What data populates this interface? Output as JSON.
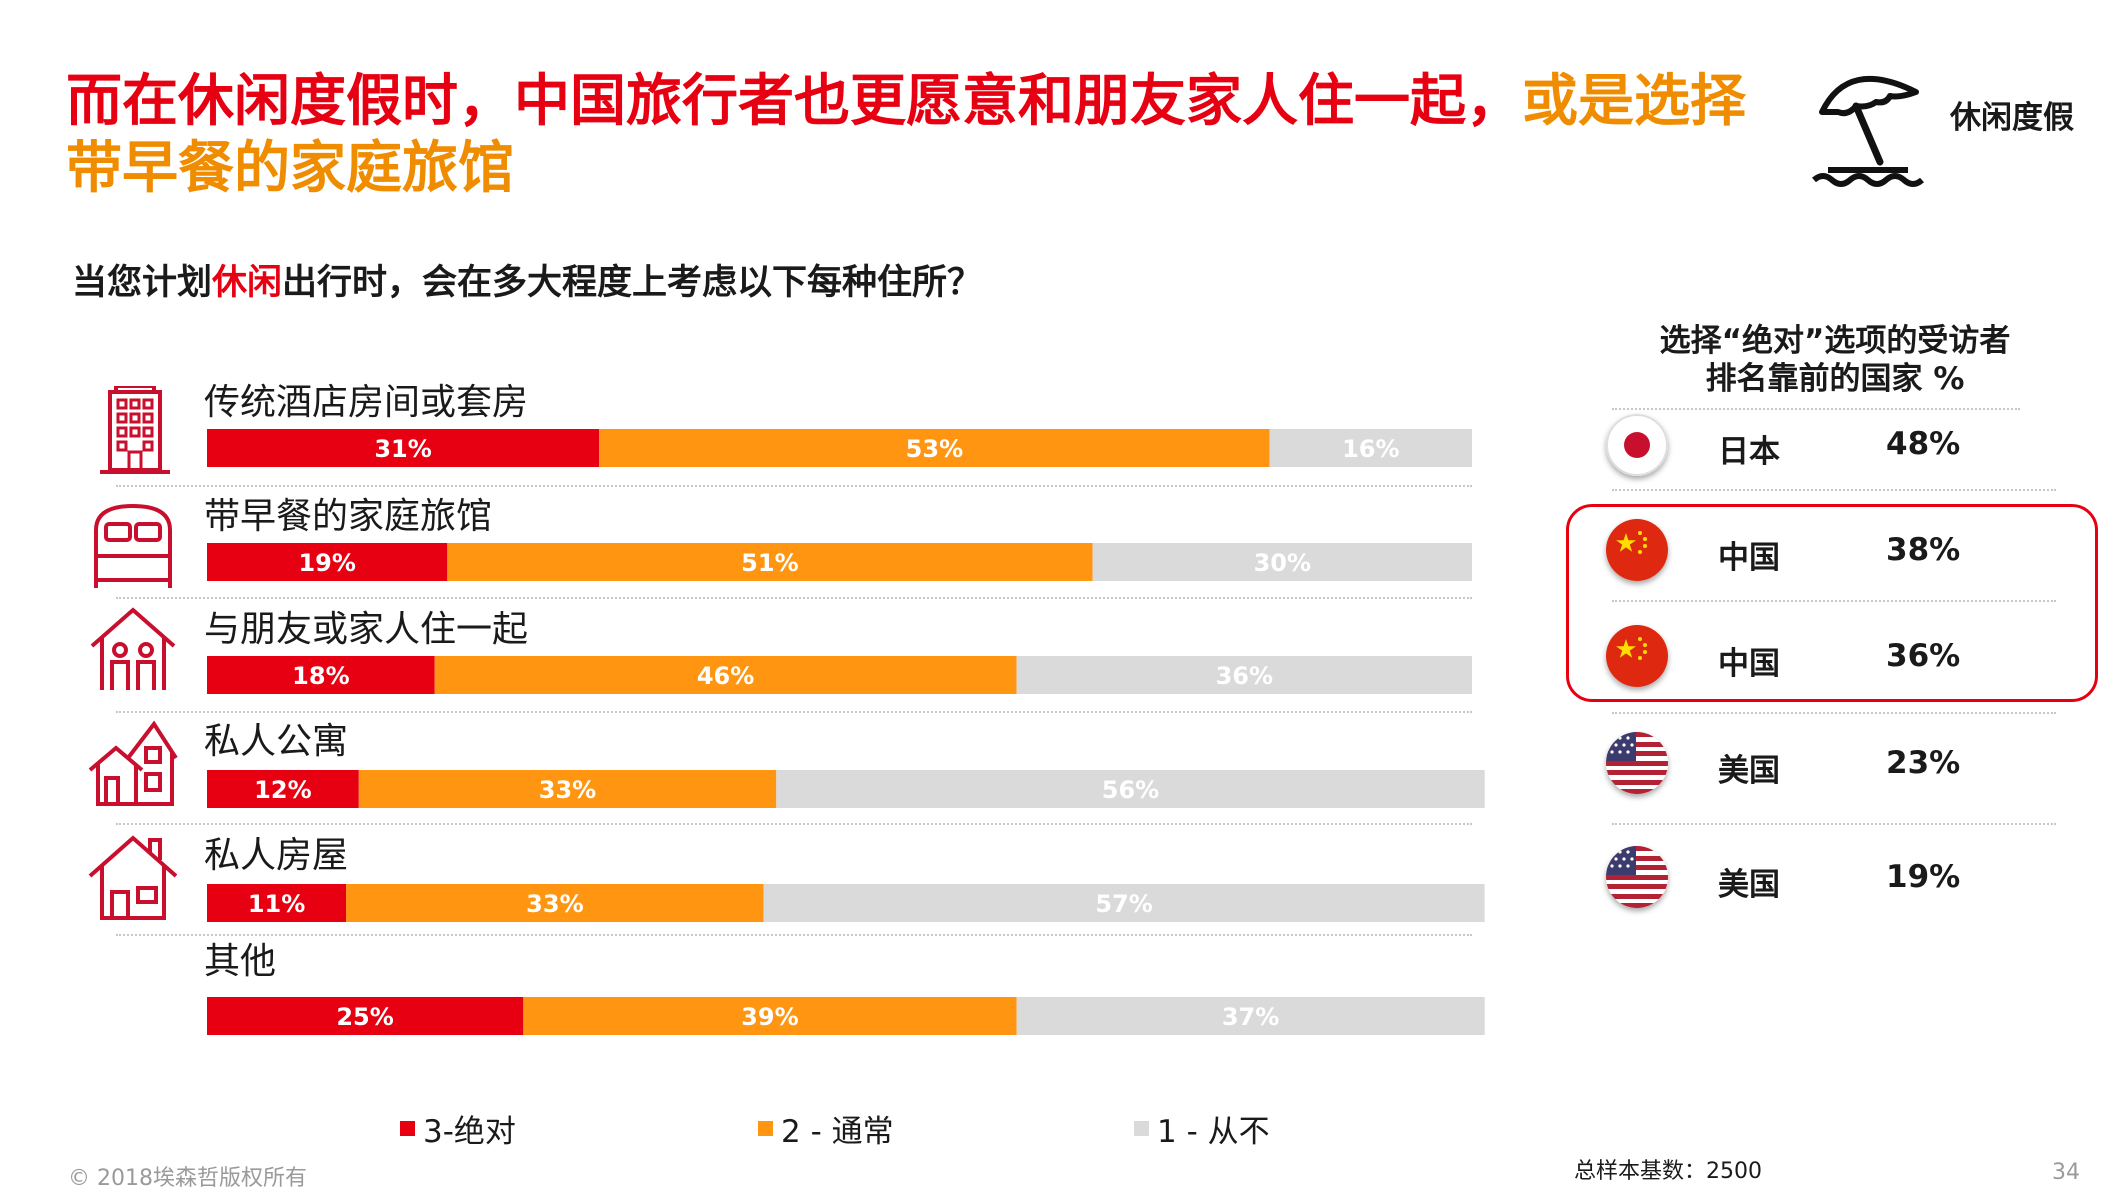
{
  "title": {
    "part1": "而在休闲度假时，中国旅行者也更愿意和朋友家人住一起，",
    "part2": "或是选择带早餐的家庭旅馆"
  },
  "badge": {
    "label": "休闲度假",
    "icon": "beach-umbrella-icon"
  },
  "question": {
    "pre": "当您计划",
    "highlight": "休闲",
    "post": "出行时，会在多大程度上考虑以下每种住所？"
  },
  "colors": {
    "absolute": "#e60012",
    "usually": "#ff9510",
    "never": "#dadada",
    "accent": "#e60012",
    "highlight": "#f08c00"
  },
  "chart_data": {
    "type": "bar",
    "orientation": "horizontal",
    "stacked": true,
    "title": "当您计划休闲出行时，会在多大程度上考虑以下每种住所？",
    "categories": [
      "传统酒店房间或套房",
      "带早餐的家庭旅馆",
      "与朋友或家人住一起",
      "私人公寓",
      "私人房屋",
      "其他"
    ],
    "category_icons": [
      "hotel-building-icon",
      "bed-icon",
      "family-house-icon",
      "apartment-icon",
      "house-icon",
      ""
    ],
    "series": [
      {
        "name": "3-绝对",
        "color": "#e60012",
        "values": [
          31,
          19,
          18,
          12,
          11,
          25
        ],
        "labels": [
          "31%",
          "19%",
          "18%",
          "12%",
          "11%",
          "25%"
        ]
      },
      {
        "name": "2 - 通常",
        "color": "#ff9510",
        "values": [
          53,
          51,
          46,
          33,
          33,
          39
        ],
        "labels": [
          "53%",
          "51%",
          "46%",
          "33%",
          "33%",
          "39%"
        ]
      },
      {
        "name": "1 - 从不",
        "color": "#dadada",
        "values": [
          16,
          30,
          36,
          56,
          57,
          37
        ],
        "labels": [
          "16%",
          "30%",
          "36%",
          "56%",
          "57%",
          "37%"
        ]
      }
    ],
    "xlim": [
      0,
      100
    ],
    "legend": [
      "3-绝对",
      "2 - 通常",
      "1 - 从不"
    ],
    "legend_position": "bottom"
  },
  "ranking": {
    "title_line1": "选择“绝对”选项的受访者",
    "title_line2": "排名靠前的国家 %",
    "rows": [
      {
        "country": "日本",
        "pct": "48%",
        "flag": "japan-flag-icon"
      },
      {
        "country": "中国",
        "pct": "38%",
        "flag": "china-flag-icon"
      },
      {
        "country": "中国",
        "pct": "36%",
        "flag": "china-flag-icon"
      },
      {
        "country": "美国",
        "pct": "23%",
        "flag": "usa-flag-icon"
      },
      {
        "country": "美国",
        "pct": "19%",
        "flag": "usa-flag-icon"
      }
    ]
  },
  "footer": {
    "copyright": "© 2018埃森哲版权所有",
    "sample": "总样本基数：2500",
    "page": "34"
  }
}
